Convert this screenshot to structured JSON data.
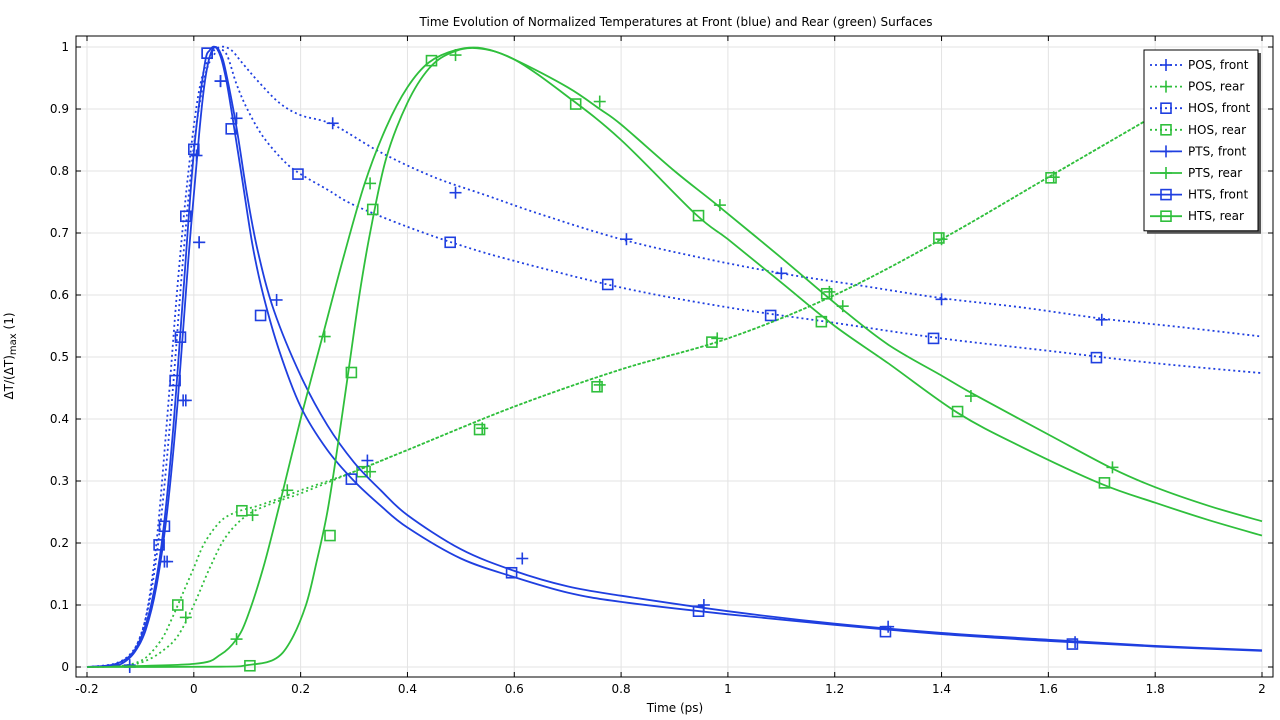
{
  "chart_data": {
    "type": "line",
    "title": "Time Evolution of Normalized Temperatures at Front (blue) and Rear (green) Surfaces",
    "xlabel": "Time (ps)",
    "ylabel_main": "ΔT/(ΔT)",
    "ylabel_sub": "max",
    "ylabel_unit": " (1)",
    "xlim": [
      -0.2,
      2.0
    ],
    "ylim": [
      -0.02,
      1.02
    ],
    "xticks": [
      -0.2,
      0,
      0.2,
      0.4,
      0.6,
      0.8,
      1,
      1.2,
      1.4,
      1.6,
      1.8,
      2
    ],
    "xtick_labels": [
      "-0.2",
      "0",
      "0.2",
      "0.4",
      "0.6",
      "0.8",
      "1",
      "1.2",
      "1.4",
      "1.6",
      "1.8",
      "2"
    ],
    "yticks": [
      0,
      0.1,
      0.2,
      0.3,
      0.4,
      0.5,
      0.6,
      0.7,
      0.8,
      0.9,
      1
    ],
    "ytick_labels": [
      "0",
      "0.1",
      "0.2",
      "0.3",
      "0.4",
      "0.5",
      "0.6",
      "0.7",
      "0.8",
      "0.9",
      "1"
    ],
    "grid": true,
    "legend_position": "top-right",
    "colors": {
      "blue": "#1f3fe0",
      "green": "#2fbf3c"
    },
    "series": [
      {
        "name": "POS, front",
        "color": "#1f3fe0",
        "dash": "dotted",
        "marker": "plus",
        "x": [
          -0.2,
          -0.15,
          -0.13,
          -0.11,
          -0.09,
          -0.07,
          -0.05,
          -0.03,
          -0.01,
          0.01,
          0.03,
          0.05,
          0.07,
          0.09,
          0.12,
          0.16,
          0.2,
          0.26,
          0.35,
          0.45,
          0.55,
          0.65,
          0.8,
          0.95,
          1.1,
          1.25,
          1.4,
          1.55,
          1.7,
          1.85,
          2.0
        ],
        "y": [
          0,
          0.003,
          0.01,
          0.03,
          0.08,
          0.2,
          0.4,
          0.62,
          0.8,
          0.93,
          0.985,
          1.0,
          0.995,
          0.975,
          0.945,
          0.91,
          0.89,
          0.875,
          0.83,
          0.79,
          0.76,
          0.73,
          0.69,
          0.66,
          0.635,
          0.615,
          0.595,
          0.58,
          0.562,
          0.548,
          0.533
        ]
      },
      {
        "name": "POS, rear",
        "color": "#2fbf3c",
        "dash": "dotted",
        "marker": "plus",
        "x": [
          -0.2,
          -0.15,
          -0.12,
          -0.09,
          -0.06,
          -0.03,
          0,
          0.03,
          0.06,
          0.1,
          0.15,
          0.2,
          0.3,
          0.4,
          0.6,
          0.8,
          1.0,
          1.2,
          1.4,
          1.6,
          1.8,
          1.9
        ],
        "y": [
          0,
          0.001,
          0.003,
          0.01,
          0.025,
          0.05,
          0.1,
          0.16,
          0.21,
          0.245,
          0.265,
          0.28,
          0.315,
          0.35,
          0.42,
          0.48,
          0.53,
          0.6,
          0.69,
          0.79,
          0.89,
          0.94
        ]
      },
      {
        "name": "HOS, front",
        "color": "#1f3fe0",
        "dash": "dotted",
        "marker": "square",
        "x": [
          -0.2,
          -0.15,
          -0.12,
          -0.1,
          -0.08,
          -0.06,
          -0.04,
          -0.02,
          0,
          0.02,
          0.04,
          0.06,
          0.08,
          0.1,
          0.13,
          0.17,
          0.2,
          0.25,
          0.3,
          0.4,
          0.5,
          0.6,
          0.8,
          1.0,
          1.2,
          1.4,
          1.6,
          1.8,
          2.0
        ],
        "y": [
          0,
          0.005,
          0.02,
          0.05,
          0.12,
          0.25,
          0.44,
          0.66,
          0.84,
          0.95,
          0.99,
          0.99,
          0.94,
          0.9,
          0.855,
          0.815,
          0.795,
          0.77,
          0.745,
          0.71,
          0.68,
          0.655,
          0.612,
          0.58,
          0.555,
          0.53,
          0.51,
          0.49,
          0.474
        ]
      },
      {
        "name": "HOS, rear",
        "color": "#2fbf3c",
        "dash": "dotted",
        "marker": "square",
        "x": [
          -0.2,
          -0.15,
          -0.12,
          -0.09,
          -0.06,
          -0.04,
          -0.02,
          0,
          0.02,
          0.05,
          0.08,
          0.12,
          0.17,
          0.2,
          0.3,
          0.4,
          0.6,
          0.8,
          1.0,
          1.2,
          1.4,
          1.6,
          1.8,
          1.9
        ],
        "y": [
          0,
          0.001,
          0.004,
          0.015,
          0.045,
          0.08,
          0.12,
          0.16,
          0.2,
          0.235,
          0.25,
          0.26,
          0.275,
          0.285,
          0.315,
          0.35,
          0.42,
          0.48,
          0.53,
          0.6,
          0.69,
          0.79,
          0.89,
          0.94
        ]
      },
      {
        "name": "PTS, front",
        "color": "#1f3fe0",
        "dash": "solid",
        "marker": "plus",
        "x": [
          -0.2,
          -0.15,
          -0.13,
          -0.11,
          -0.09,
          -0.07,
          -0.05,
          -0.03,
          -0.01,
          0.01,
          0.02,
          0.03,
          0.04,
          0.05,
          0.06,
          0.08,
          0.1,
          0.12,
          0.15,
          0.2,
          0.25,
          0.3,
          0.35,
          0.4,
          0.5,
          0.6,
          0.7,
          0.8,
          1.0,
          1.2,
          1.4,
          1.6,
          1.8,
          2.0
        ],
        "y": [
          0,
          0.002,
          0.008,
          0.025,
          0.06,
          0.13,
          0.25,
          0.43,
          0.66,
          0.86,
          0.94,
          0.985,
          1.0,
          0.99,
          0.96,
          0.87,
          0.76,
          0.67,
          0.575,
          0.47,
          0.39,
          0.33,
          0.285,
          0.245,
          0.19,
          0.155,
          0.13,
          0.115,
          0.09,
          0.07,
          0.055,
          0.044,
          0.034,
          0.027
        ]
      },
      {
        "name": "PTS, rear",
        "color": "#2fbf3c",
        "dash": "solid",
        "marker": "plus",
        "x": [
          -0.2,
          0,
          0.05,
          0.08,
          0.1,
          0.13,
          0.16,
          0.2,
          0.24,
          0.28,
          0.32,
          0.36,
          0.4,
          0.44,
          0.49,
          0.54,
          0.6,
          0.7,
          0.76,
          0.8,
          0.9,
          0.98,
          1.1,
          1.21,
          1.3,
          1.4,
          1.46,
          1.6,
          1.72,
          1.8,
          1.9,
          2.0
        ],
        "y": [
          0,
          0.005,
          0.02,
          0.045,
          0.08,
          0.16,
          0.26,
          0.4,
          0.53,
          0.66,
          0.78,
          0.87,
          0.935,
          0.975,
          0.995,
          0.998,
          0.98,
          0.935,
          0.9,
          0.875,
          0.8,
          0.745,
          0.66,
          0.58,
          0.52,
          0.47,
          0.44,
          0.375,
          0.32,
          0.29,
          0.26,
          0.235
        ]
      },
      {
        "name": "HTS, front",
        "color": "#1f3fe0",
        "dash": "solid",
        "marker": "square",
        "x": [
          -0.2,
          -0.15,
          -0.12,
          -0.1,
          -0.08,
          -0.06,
          -0.04,
          -0.02,
          0,
          0.02,
          0.03,
          0.04,
          0.05,
          0.06,
          0.07,
          0.09,
          0.11,
          0.13,
          0.16,
          0.2,
          0.25,
          0.3,
          0.35,
          0.4,
          0.5,
          0.6,
          0.7,
          0.8,
          1.0,
          1.2,
          1.4,
          1.6,
          1.8,
          2.0
        ],
        "y": [
          0,
          0.004,
          0.018,
          0.045,
          0.1,
          0.2,
          0.37,
          0.6,
          0.83,
          0.97,
          0.995,
          1.0,
          0.985,
          0.95,
          0.9,
          0.79,
          0.68,
          0.6,
          0.51,
          0.42,
          0.35,
          0.3,
          0.26,
          0.225,
          0.175,
          0.145,
          0.12,
          0.105,
          0.085,
          0.068,
          0.053,
          0.042,
          0.033,
          0.026
        ]
      },
      {
        "name": "HTS, rear",
        "color": "#2fbf3c",
        "dash": "solid",
        "marker": "square",
        "x": [
          -0.2,
          0.05,
          0.1,
          0.15,
          0.18,
          0.21,
          0.23,
          0.25,
          0.27,
          0.29,
          0.31,
          0.33,
          0.36,
          0.4,
          0.44,
          0.48,
          0.53,
          0.6,
          0.7,
          0.8,
          0.94,
          1.0,
          1.1,
          1.2,
          1.3,
          1.43,
          1.55,
          1.7,
          1.8,
          1.9,
          2.0
        ],
        "y": [
          0,
          0.0005,
          0.003,
          0.012,
          0.04,
          0.1,
          0.17,
          0.25,
          0.36,
          0.48,
          0.6,
          0.7,
          0.82,
          0.91,
          0.965,
          0.99,
          0.998,
          0.98,
          0.92,
          0.85,
          0.73,
          0.69,
          0.62,
          0.55,
          0.49,
          0.41,
          0.355,
          0.295,
          0.265,
          0.237,
          0.212
        ]
      }
    ],
    "markers": {
      "POS, front": [
        [
          -0.12,
          0
        ],
        [
          -0.05,
          0.17
        ],
        [
          -0.015,
          0.43
        ],
        [
          0.01,
          0.685
        ],
        [
          0.005,
          0.825
        ],
        [
          0.05,
          0.945
        ],
        [
          0.08,
          0.885
        ],
        [
          0.26,
          0.877
        ],
        [
          0.49,
          0.765
        ],
        [
          0.81,
          0.69
        ],
        [
          1.1,
          0.635
        ],
        [
          1.4,
          0.593
        ],
        [
          1.7,
          0.56
        ]
      ],
      "POS, rear": [
        [
          -0.015,
          0.08
        ],
        [
          0.11,
          0.245
        ],
        [
          0.33,
          0.315
        ],
        [
          0.54,
          0.385
        ],
        [
          0.76,
          0.455
        ],
        [
          0.98,
          0.53
        ],
        [
          1.19,
          0.605
        ],
        [
          1.4,
          0.69
        ],
        [
          1.61,
          0.79
        ]
      ],
      "HOS, front": [
        [
          -0.065,
          0.197
        ],
        [
          -0.035,
          0.462
        ],
        [
          -0.025,
          0.532
        ],
        [
          -0.015,
          0.727
        ],
        [
          0.0,
          0.835
        ],
        [
          0.025,
          0.99
        ],
        [
          0.07,
          0.868
        ],
        [
          0.195,
          0.795
        ],
        [
          0.48,
          0.685
        ],
        [
          0.775,
          0.617
        ],
        [
          1.08,
          0.567
        ],
        [
          1.385,
          0.53
        ],
        [
          1.69,
          0.499
        ]
      ],
      "HOS, rear": [
        [
          -0.03,
          0.1
        ],
        [
          0.09,
          0.252
        ],
        [
          0.315,
          0.315
        ],
        [
          0.535,
          0.383
        ],
        [
          0.755,
          0.452
        ],
        [
          0.97,
          0.524
        ],
        [
          1.185,
          0.602
        ],
        [
          1.395,
          0.692
        ],
        [
          1.605,
          0.789
        ]
      ],
      "PTS, front": [
        [
          -0.12,
          0.003
        ],
        [
          -0.055,
          0.17
        ],
        [
          -0.02,
          0.43
        ],
        [
          0.01,
          0.685
        ],
        [
          0.05,
          0.945
        ],
        [
          0.155,
          0.592
        ],
        [
          0.325,
          0.333
        ],
        [
          0.615,
          0.175
        ],
        [
          0.955,
          0.1
        ],
        [
          1.3,
          0.065
        ],
        [
          1.65,
          0.04
        ]
      ],
      "PTS, rear": [
        [
          0.08,
          0.045
        ],
        [
          0.175,
          0.285
        ],
        [
          0.245,
          0.533
        ],
        [
          0.33,
          0.78
        ],
        [
          0.49,
          0.987
        ],
        [
          0.76,
          0.912
        ],
        [
          0.985,
          0.745
        ],
        [
          1.215,
          0.582
        ],
        [
          1.455,
          0.437
        ],
        [
          1.72,
          0.322
        ]
      ],
      "HTS, front": [
        [
          -0.055,
          0.227
        ],
        [
          0.025,
          0.99
        ],
        [
          0.125,
          0.567
        ],
        [
          0.295,
          0.303
        ],
        [
          0.595,
          0.152
        ],
        [
          0.945,
          0.09
        ],
        [
          1.295,
          0.057
        ],
        [
          1.645,
          0.037
        ]
      ],
      "HTS, rear": [
        [
          0.105,
          0.002
        ],
        [
          0.255,
          0.212
        ],
        [
          0.295,
          0.475
        ],
        [
          0.335,
          0.738
        ],
        [
          0.445,
          0.978
        ],
        [
          0.715,
          0.908
        ],
        [
          0.945,
          0.728
        ],
        [
          1.175,
          0.557
        ],
        [
          1.43,
          0.412
        ],
        [
          1.705,
          0.297
        ]
      ]
    }
  }
}
